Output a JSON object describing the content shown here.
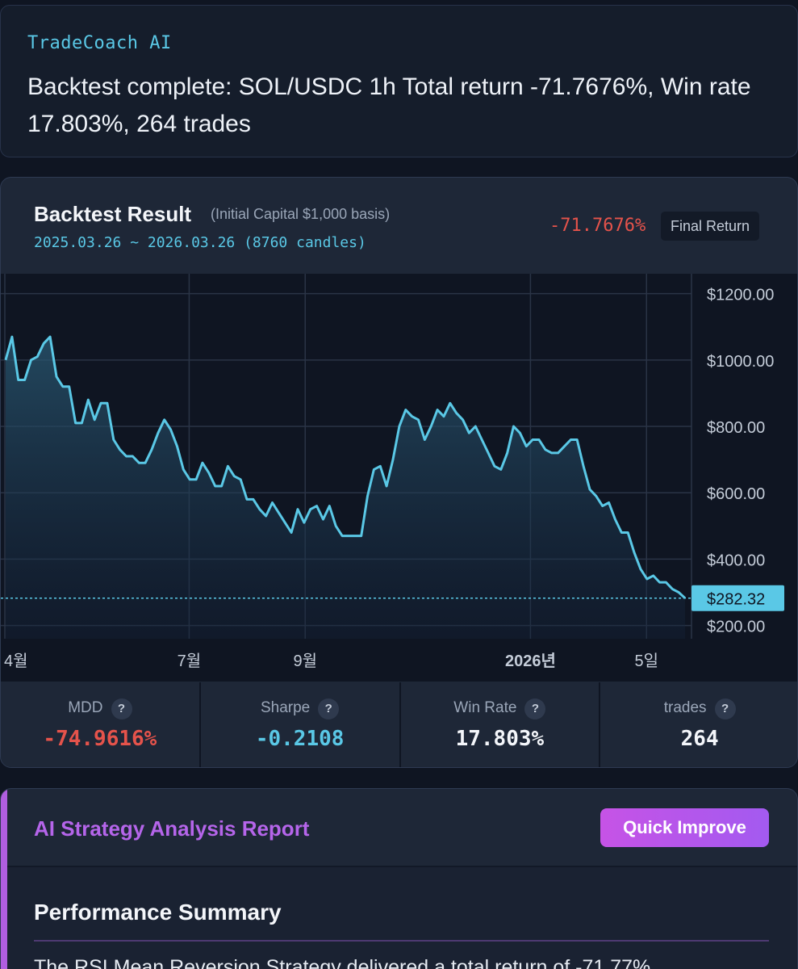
{
  "message": {
    "sender": "TradeCoach AI",
    "text": "Backtest complete: SOL/USDC 1h Total return -71.7676%, Win rate 17.803%, 264 trades"
  },
  "result": {
    "title": "Backtest Result",
    "subtitle": "(Initial Capital $1,000 basis)",
    "date_range": "2025.03.26 ~ 2026.03.26 (8760 candles)",
    "final_return_value": "-71.7676%",
    "final_return_label": "Final Return"
  },
  "chart_data": {
    "type": "area",
    "y_ticks": [
      "$1200.00",
      "$1000.00",
      "$800.00",
      "$600.00",
      "$400.00",
      "$200.00"
    ],
    "y_tick_values": [
      1200,
      1000,
      800,
      600,
      400,
      200
    ],
    "ylim": [
      160,
      1260
    ],
    "x_tick_labels": [
      "4월",
      "7월",
      "9월",
      "2026년",
      "5일"
    ],
    "x_tick_positions": [
      0.0,
      0.27,
      0.44,
      0.77,
      0.94
    ],
    "x_tick_bold": [
      false,
      false,
      false,
      true,
      false
    ],
    "last_value_label": "$282.32",
    "last_value": 282.32,
    "line_color": "#5ac8e6",
    "values": [
      1000,
      1070,
      940,
      940,
      1000,
      1010,
      1050,
      1070,
      950,
      920,
      920,
      810,
      810,
      880,
      820,
      870,
      870,
      760,
      730,
      710,
      710,
      690,
      690,
      730,
      780,
      820,
      790,
      740,
      670,
      640,
      640,
      690,
      660,
      620,
      620,
      680,
      650,
      640,
      580,
      580,
      550,
      530,
      570,
      540,
      510,
      480,
      550,
      510,
      550,
      560,
      520,
      560,
      500,
      470,
      470,
      470,
      470,
      590,
      670,
      680,
      620,
      700,
      800,
      850,
      830,
      820,
      760,
      800,
      850,
      830,
      870,
      840,
      820,
      780,
      800,
      760,
      720,
      680,
      670,
      720,
      800,
      780,
      740,
      760,
      760,
      730,
      720,
      720,
      740,
      760,
      760,
      680,
      610,
      590,
      560,
      570,
      520,
      480,
      480,
      420,
      370,
      340,
      350,
      330,
      330,
      310,
      300,
      282.32
    ]
  },
  "stats": [
    {
      "label": "MDD",
      "value": "-74.9616%",
      "color": "#e5534b"
    },
    {
      "label": "Sharpe",
      "value": "-0.2108",
      "color": "#5ac8e6"
    },
    {
      "label": "Win Rate",
      "value": "17.803%",
      "color": "#f4f6fa"
    },
    {
      "label": "trades",
      "value": "264",
      "color": "#f4f6fa"
    }
  ],
  "report": {
    "title": "AI Strategy Analysis Report",
    "quick_improve": "Quick Improve",
    "section_title": "Performance Summary",
    "body_text": "The RSI Mean Reversion Strategy delivered a total return of -71.77%"
  }
}
